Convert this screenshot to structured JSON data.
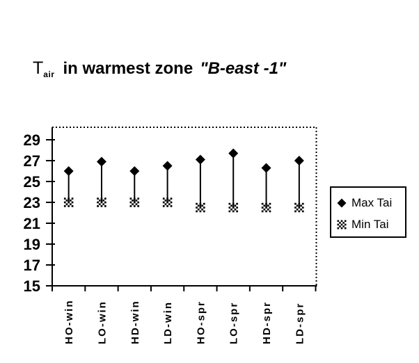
{
  "title": {
    "prefix": "T",
    "subscript": "air",
    "main": "in warmest zone",
    "quoted": "\"B-east -1\""
  },
  "legend": {
    "items": [
      {
        "label": "Max Tai",
        "marker": "diamond"
      },
      {
        "label": "Min Tai",
        "marker": "checkerboard-square"
      }
    ]
  },
  "chart_data": {
    "type": "high-low-line",
    "title": "Tair in warmest zone \"B-east -1\"",
    "categories": [
      "HO-win",
      "LO-win",
      "HD-win",
      "LD-win",
      "HO-spr",
      "LO-spr",
      "HD-spr",
      "LD-spr"
    ],
    "series": [
      {
        "name": "Max Tai",
        "marker": "diamond",
        "values": [
          26.0,
          26.9,
          26.0,
          26.5,
          27.1,
          27.7,
          26.3,
          27.0
        ]
      },
      {
        "name": "Min Tai",
        "marker": "checkerboard-square",
        "values": [
          23.0,
          23.0,
          23.0,
          23.0,
          22.5,
          22.5,
          22.5,
          22.5
        ]
      }
    ],
    "ylim": [
      15,
      30.2
    ],
    "yticks": [
      15,
      17,
      19,
      21,
      23,
      25,
      27,
      29
    ],
    "xlabel": "",
    "ylabel": "",
    "grid": false,
    "legend_position": "right",
    "plot_border": {
      "top": "dotted",
      "right": "dotted",
      "left": "solid",
      "bottom": "solid"
    },
    "colors": {
      "foreground": "#000000",
      "background": "#ffffff"
    }
  }
}
